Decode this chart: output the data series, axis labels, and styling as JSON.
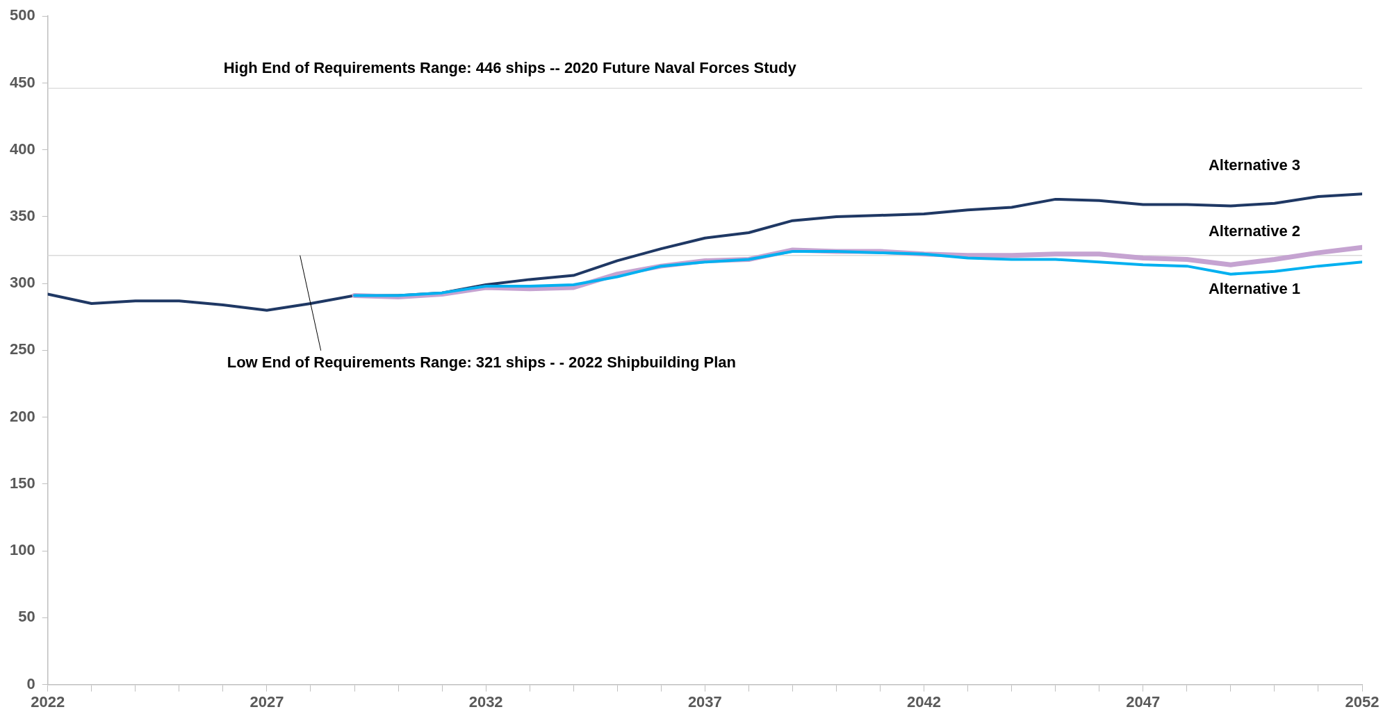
{
  "chart_data": {
    "type": "line",
    "x": [
      2022,
      2023,
      2024,
      2025,
      2026,
      2027,
      2028,
      2029,
      2030,
      2031,
      2032,
      2033,
      2034,
      2035,
      2036,
      2037,
      2038,
      2039,
      2040,
      2041,
      2042,
      2043,
      2044,
      2045,
      2046,
      2047,
      2048,
      2049,
      2050,
      2051,
      2052
    ],
    "series": [
      {
        "name": "Alternative 1",
        "color": "#00b0f0",
        "values": [
          null,
          null,
          null,
          null,
          null,
          null,
          null,
          291,
          291,
          293,
          298,
          298,
          299,
          305,
          313,
          316,
          318,
          324,
          324,
          323,
          322,
          319,
          318,
          318,
          316,
          314,
          313,
          307,
          309,
          313,
          316
        ]
      },
      {
        "name": "Alternative 2",
        "color": "#c5a3d1",
        "values": [
          null,
          null,
          null,
          null,
          null,
          null,
          null,
          291,
          290,
          292,
          297,
          296,
          297,
          307,
          313,
          317,
          318,
          325,
          324,
          324,
          322,
          321,
          321,
          322,
          322,
          319,
          318,
          314,
          318,
          323,
          327
        ]
      },
      {
        "name": "Alternative 3",
        "color": "#1f3864",
        "values": [
          292,
          285,
          287,
          287,
          284,
          280,
          285,
          291,
          291,
          293,
          299,
          303,
          306,
          317,
          326,
          334,
          338,
          347,
          350,
          351,
          352,
          355,
          357,
          363,
          362,
          359,
          359,
          358,
          360,
          365,
          367
        ]
      }
    ],
    "xlim": [
      2022,
      2052
    ],
    "xticks": [
      2022,
      {
        "value": 2023,
        "label": null
      },
      {
        "value": 2024,
        "label": null
      },
      {
        "value": 2025,
        "label": null
      },
      {
        "value": 2026,
        "label": null
      },
      2027,
      {
        "value": 2028,
        "label": null
      },
      {
        "value": 2029,
        "label": null
      },
      {
        "value": 2030,
        "label": null
      },
      {
        "value": 2031,
        "label": null
      },
      2032,
      {
        "value": 2033,
        "label": null
      },
      {
        "value": 2034,
        "label": null
      },
      {
        "value": 2035,
        "label": null
      },
      {
        "value": 2036,
        "label": null
      },
      2037,
      {
        "value": 2038,
        "label": null
      },
      {
        "value": 2039,
        "label": null
      },
      {
        "value": 2040,
        "label": null
      },
      {
        "value": 2041,
        "label": null
      },
      2042,
      {
        "value": 2043,
        "label": null
      },
      {
        "value": 2044,
        "label": null
      },
      {
        "value": 2045,
        "label": null
      },
      {
        "value": 2046,
        "label": null
      },
      2047,
      {
        "value": 2048,
        "label": null
      },
      {
        "value": 2049,
        "label": null
      },
      {
        "value": 2050,
        "label": null
      },
      {
        "value": 2051,
        "label": null
      },
      2052
    ],
    "ylim": [
      0,
      500
    ],
    "yticks": [
      0,
      50,
      100,
      150,
      200,
      250,
      300,
      350,
      400,
      450,
      500
    ],
    "ref_lines": [
      {
        "axis": "y",
        "value": 446,
        "label": "High End of Requirements Range: 446 ships -- 2020 Future Naval Forces Study",
        "color": "#d9d9d9"
      },
      {
        "axis": "y",
        "value": 321,
        "label": "Low End of Requirements Range: 321 ships - - 2022 Shipbuilding Plan",
        "color": "#d9d9d9"
      }
    ],
    "grid": false,
    "legend": false,
    "marker": "none",
    "line_style": "solid"
  }
}
